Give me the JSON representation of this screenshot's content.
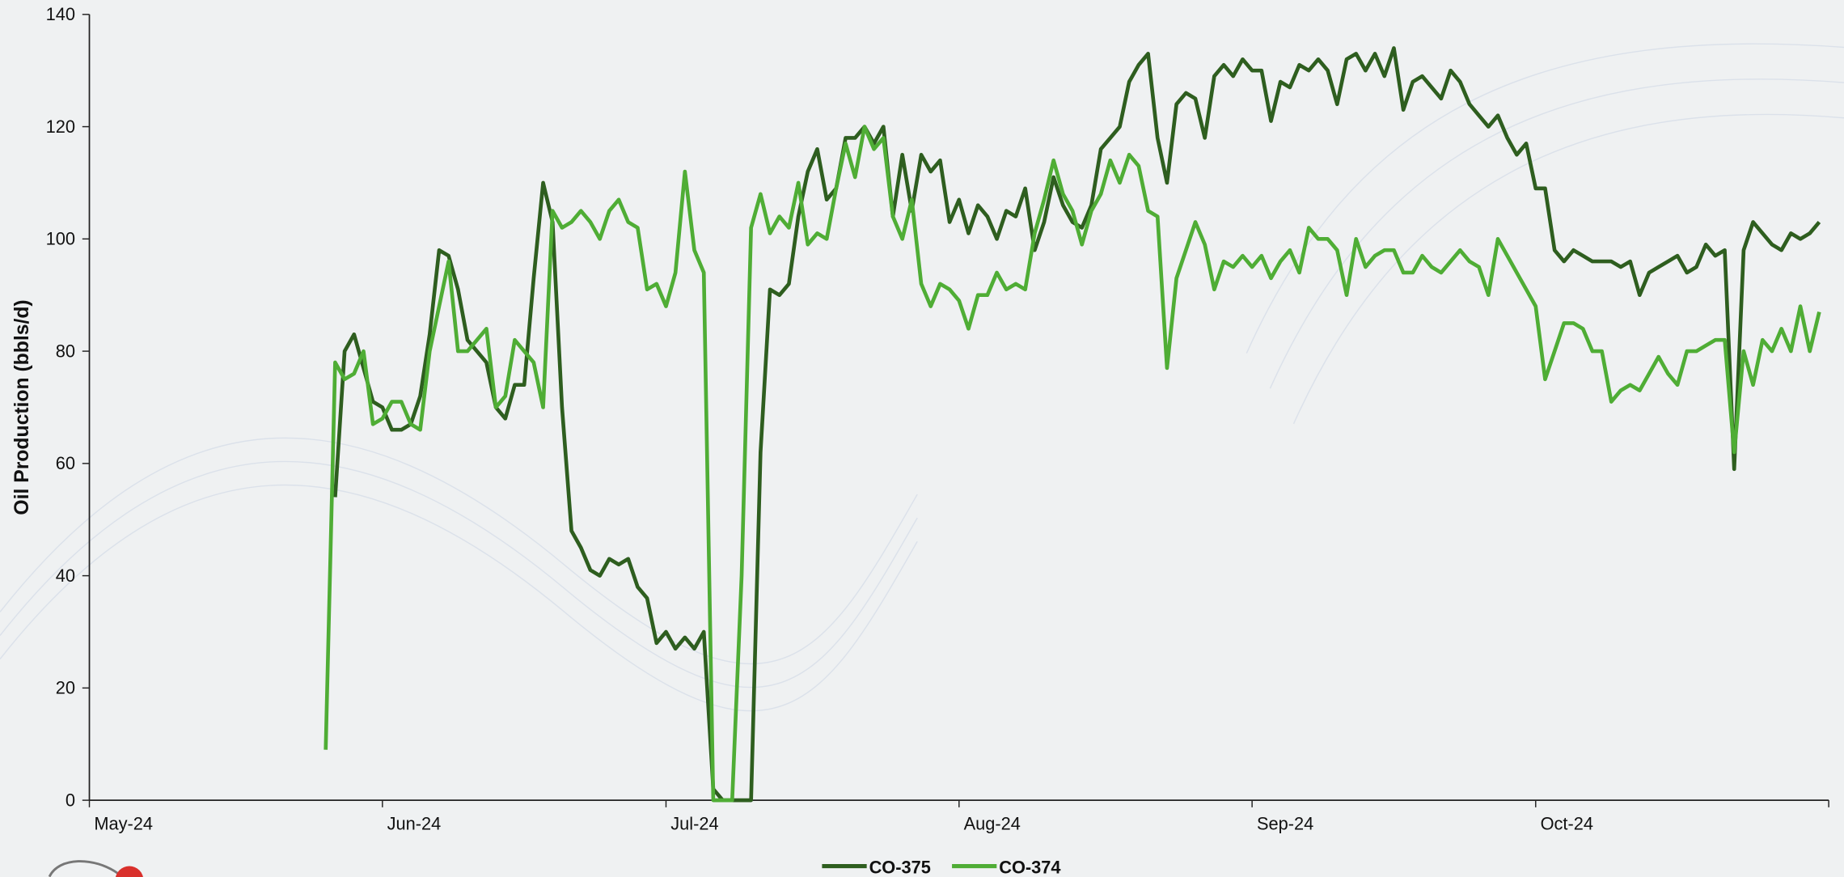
{
  "chart_data": {
    "type": "line",
    "y_label": "Oil Production (bbls/d)",
    "categories": [
      "May-24",
      null,
      null,
      null,
      null,
      null,
      null,
      null,
      null,
      null,
      null,
      null,
      null,
      null,
      null,
      null,
      null,
      null,
      null,
      null,
      null,
      null,
      null,
      null,
      null,
      null,
      null,
      null,
      null,
      null,
      null,
      "Jun-24",
      null,
      null,
      null,
      null,
      null,
      null,
      null,
      null,
      null,
      null,
      null,
      null,
      null,
      null,
      null,
      null,
      null,
      null,
      null,
      null,
      null,
      null,
      null,
      null,
      null,
      null,
      null,
      null,
      null,
      "Jul-24",
      null,
      null,
      null,
      null,
      null,
      null,
      null,
      null,
      null,
      null,
      null,
      null,
      null,
      null,
      null,
      null,
      null,
      null,
      null,
      null,
      null,
      null,
      null,
      null,
      null,
      null,
      null,
      null,
      null,
      null,
      "Aug-24",
      null,
      null,
      null,
      null,
      null,
      null,
      null,
      null,
      null,
      null,
      null,
      null,
      null,
      null,
      null,
      null,
      null,
      null,
      null,
      null,
      null,
      null,
      null,
      null,
      null,
      null,
      null,
      null,
      null,
      null,
      "Sep-24",
      null,
      null,
      null,
      null,
      null,
      null,
      null,
      null,
      null,
      null,
      null,
      null,
      null,
      null,
      null,
      null,
      null,
      null,
      null,
      null,
      null,
      null,
      null,
      null,
      null,
      null,
      null,
      null,
      null,
      "Oct-24",
      null,
      null,
      null,
      null,
      null,
      null,
      null,
      null,
      null,
      null,
      null,
      null,
      null,
      null,
      null,
      null,
      null,
      null,
      null,
      null,
      null,
      null,
      null,
      null,
      null,
      null,
      null,
      null,
      null,
      null
    ],
    "series": [
      {
        "name": "CO-375",
        "color": "#2e5e1f",
        "values": [
          null,
          null,
          null,
          null,
          null,
          null,
          null,
          null,
          null,
          null,
          null,
          null,
          null,
          null,
          null,
          null,
          null,
          null,
          null,
          null,
          null,
          null,
          null,
          null,
          null,
          null,
          54,
          80,
          83,
          77,
          71,
          70,
          66,
          66,
          67,
          72,
          83,
          98,
          97,
          91,
          82,
          80,
          78,
          70,
          68,
          74,
          74,
          93,
          110,
          103,
          70,
          48,
          45,
          41,
          40,
          43,
          42,
          43,
          38,
          36,
          28,
          30,
          27,
          29,
          27,
          30,
          2,
          0,
          0,
          0,
          0,
          62,
          91,
          90,
          92,
          104,
          112,
          116,
          107,
          109,
          118,
          118,
          120,
          117,
          120,
          104,
          115,
          105,
          115,
          112,
          114,
          103,
          107,
          101,
          106,
          104,
          100,
          105,
          104,
          109,
          98,
          103,
          111,
          106,
          103,
          102,
          106,
          116,
          118,
          120,
          128,
          131,
          133,
          118,
          110,
          124,
          126,
          125,
          118,
          129,
          131,
          129,
          132,
          130,
          130,
          121,
          128,
          127,
          131,
          130,
          132,
          130,
          124,
          132,
          133,
          130,
          133,
          129,
          134,
          123,
          128,
          129,
          127,
          125,
          130,
          128,
          124,
          122,
          120,
          122,
          118,
          115,
          117,
          109,
          109,
          98,
          96,
          98,
          97,
          96,
          96,
          96,
          95,
          96,
          90,
          94,
          95,
          96,
          97,
          94,
          95,
          99,
          97,
          98,
          59,
          98,
          103,
          101,
          99,
          98,
          101,
          100,
          101,
          103
        ]
      },
      {
        "name": "CO-374",
        "color": "#4fad35",
        "values": [
          null,
          null,
          null,
          null,
          null,
          null,
          null,
          null,
          null,
          null,
          null,
          null,
          null,
          null,
          null,
          null,
          null,
          null,
          null,
          null,
          null,
          null,
          null,
          null,
          null,
          9,
          78,
          75,
          76,
          80,
          67,
          68,
          71,
          71,
          67,
          66,
          80,
          88,
          96,
          80,
          80,
          82,
          84,
          70,
          72,
          82,
          80,
          78,
          70,
          105,
          102,
          103,
          105,
          103,
          100,
          105,
          107,
          103,
          102,
          91,
          92,
          88,
          94,
          112,
          98,
          94,
          0,
          0,
          0,
          40,
          102,
          108,
          101,
          104,
          102,
          110,
          99,
          101,
          100,
          109,
          117,
          111,
          120,
          116,
          118,
          104,
          100,
          107,
          92,
          88,
          92,
          91,
          89,
          84,
          90,
          90,
          94,
          91,
          92,
          91,
          101,
          107,
          114,
          108,
          105,
          99,
          105,
          108,
          114,
          110,
          115,
          113,
          105,
          104,
          77,
          93,
          98,
          103,
          99,
          91,
          96,
          95,
          97,
          95,
          97,
          93,
          96,
          98,
          94,
          102,
          100,
          100,
          98,
          90,
          100,
          95,
          97,
          98,
          98,
          94,
          94,
          97,
          95,
          94,
          96,
          98,
          96,
          95,
          90,
          100,
          97,
          94,
          91,
          88,
          75,
          80,
          85,
          85,
          84,
          80,
          80,
          71,
          73,
          74,
          73,
          76,
          79,
          76,
          74,
          80,
          80,
          81,
          82,
          82,
          62,
          80,
          74,
          82,
          80,
          84,
          80,
          88,
          80,
          87
        ]
      }
    ],
    "ylim": [
      0,
      140
    ],
    "yticks": [
      0,
      20,
      40,
      60,
      80,
      100,
      120,
      140
    ],
    "legend": "bottom"
  }
}
